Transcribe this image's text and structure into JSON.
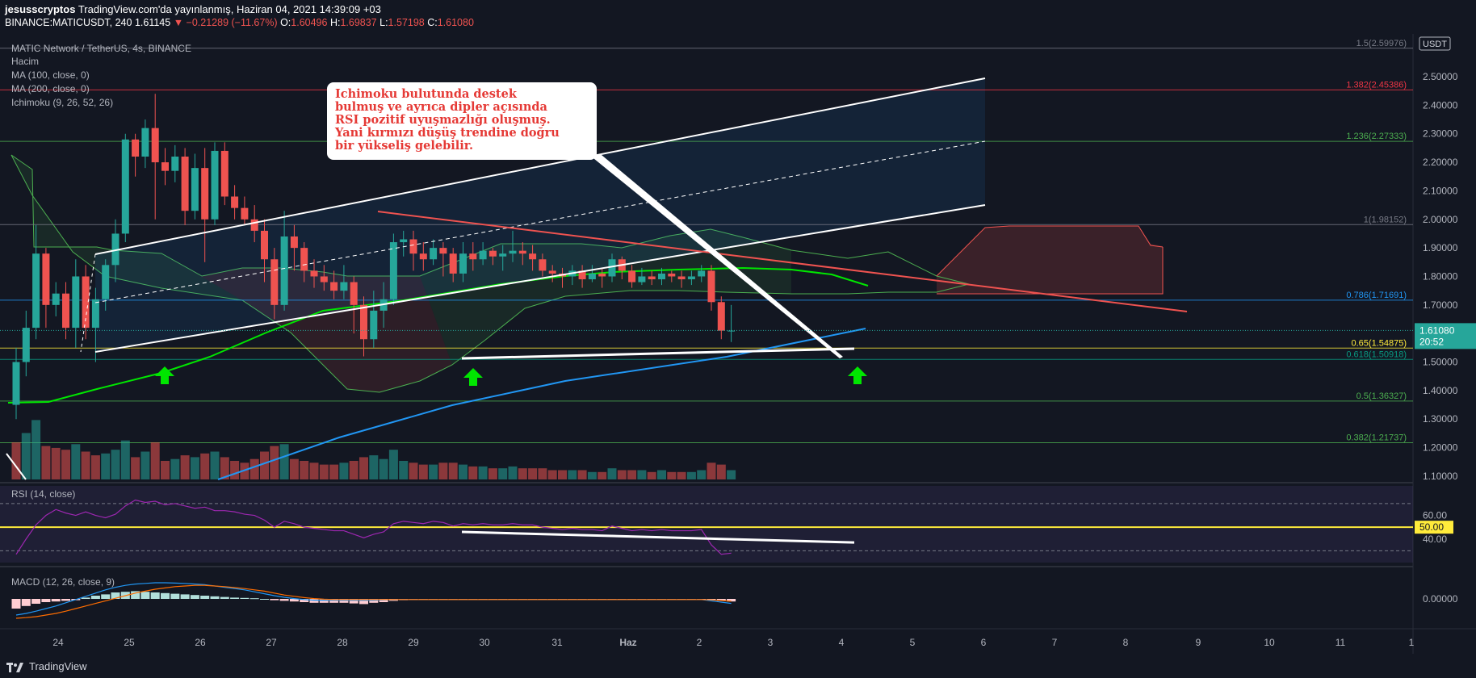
{
  "header": {
    "publisher": "jesusscryptos",
    "published_text": "TradingView.com'da yayınlanmış, Haziran 04, 2021 14:39:09 +03",
    "symbol": "BINANCE:MATICUSDT, 240",
    "last": "1.61145",
    "change": "−0.21289 (−11.67%)",
    "o": "1.60496",
    "h": "1.69837",
    "l": "1.57198",
    "c": "1.61080"
  },
  "legend": {
    "title": "MATIC Network / TetherUS, 4s, BINANCE",
    "volume": "Hacim",
    "ma100": "MA (100, close, 0)",
    "ma200": "MA (200, close, 0)",
    "ichimoku": "Ichimoku (9, 26, 52, 26)",
    "rsi": "RSI (14, close)",
    "macd": "MACD (12, 26, close, 9)"
  },
  "annotation": {
    "text": "Ichimoku bulutunda destek\nbulmuş ve ayrıca dipler açısında\nRSI pozitif uyuşmazlığı oluşmuş.\nYani kırmızı düşüş trendine doğru\nbir yükseliş gelebilir."
  },
  "currency": "USDT",
  "price_tag": {
    "value": "1.61080",
    "timer": "20:52"
  },
  "rsi_tag": "50.00",
  "branding": "TradingView",
  "colors": {
    "up": "#26a69a",
    "down": "#ef5350",
    "bg": "#131722",
    "ma100": "#00e600",
    "ma200": "#2196f3",
    "rsi": "#9c27b0",
    "note_text": "#e53935"
  },
  "chart_data": [
    {
      "type": "candlestick",
      "title": "MATIC Network / TetherUS, 4s, BINANCE",
      "x_ticks": [
        "24",
        "25",
        "26",
        "27",
        "28",
        "29",
        "30",
        "31",
        "Haz",
        "2",
        "3",
        "4",
        "5",
        "6",
        "7",
        "8",
        "9",
        "10",
        "11",
        "1"
      ],
      "y_ticks": [
        "1.10000",
        "1.20000",
        "1.30000",
        "1.40000",
        "1.50000",
        "1.60000",
        "1.70000",
        "1.80000",
        "1.90000",
        "2.00000",
        "2.10000",
        "2.20000",
        "2.30000",
        "2.40000",
        "2.50000"
      ],
      "ylim": [
        1.08,
        2.65
      ],
      "fib_levels": [
        {
          "label": "1.5(2.59976)",
          "value": 2.59976,
          "color": "#787b86"
        },
        {
          "label": "1.382(2.45386)",
          "value": 2.45386,
          "color": "#f23645"
        },
        {
          "label": "1.236(2.27333)",
          "value": 2.27333,
          "color": "#4caf50"
        },
        {
          "label": "1(1.98152)",
          "value": 1.98152,
          "color": "#787b86"
        },
        {
          "label": "0.786(1.71691)",
          "value": 1.71691,
          "color": "#2196f3"
        },
        {
          "label": "0.65(1.54875)",
          "value": 1.54875,
          "color": "#ffeb3b"
        },
        {
          "label": "0.618(1.50918)",
          "value": 1.50918,
          "color": "#089981"
        },
        {
          "label": "0.5(1.36327)",
          "value": 1.36327,
          "color": "#4caf50"
        },
        {
          "label": "0.382(1.21737)",
          "value": 1.21737,
          "color": "#4caf50"
        }
      ],
      "candles": [
        [
          1.35,
          1.5,
          1.3,
          1.55
        ],
        [
          1.5,
          1.62,
          1.45,
          1.68
        ],
        [
          1.62,
          1.88,
          1.58,
          1.98
        ],
        [
          1.88,
          1.7,
          1.62,
          1.9
        ],
        [
          1.7,
          1.74,
          1.66,
          1.78
        ],
        [
          1.74,
          1.62,
          1.58,
          1.78
        ],
        [
          1.62,
          1.8,
          1.55,
          1.86
        ],
        [
          1.8,
          1.62,
          1.58,
          1.84
        ],
        [
          1.62,
          1.72,
          1.5,
          1.76
        ],
        [
          1.72,
          1.84,
          1.68,
          1.86
        ],
        [
          1.84,
          1.95,
          1.78,
          2.0
        ],
        [
          1.95,
          2.28,
          1.92,
          2.3
        ],
        [
          2.28,
          2.22,
          2.15,
          2.3
        ],
        [
          2.22,
          2.32,
          2.18,
          2.35
        ],
        [
          2.32,
          2.2,
          2.0,
          2.44
        ],
        [
          2.2,
          2.17,
          2.12,
          2.25
        ],
        [
          2.17,
          2.22,
          2.13,
          2.26
        ],
        [
          2.22,
          2.03,
          1.98,
          2.25
        ],
        [
          2.03,
          2.18,
          2.0,
          2.23
        ],
        [
          2.18,
          2.0,
          1.85,
          2.25
        ],
        [
          2.0,
          2.24,
          1.98,
          2.27
        ],
        [
          2.24,
          2.08,
          2.05,
          2.27
        ],
        [
          2.08,
          2.04,
          2.0,
          2.12
        ],
        [
          2.04,
          2.0,
          1.98,
          2.08
        ],
        [
          2.0,
          1.96,
          1.92,
          2.05
        ],
        [
          1.96,
          1.86,
          1.78,
          2.0
        ],
        [
          1.86,
          1.7,
          1.65,
          1.9
        ],
        [
          1.7,
          1.94,
          1.68,
          2.03
        ],
        [
          1.94,
          1.9,
          1.82,
          1.98
        ],
        [
          1.9,
          1.82,
          1.78,
          1.92
        ],
        [
          1.82,
          1.8,
          1.76,
          1.86
        ],
        [
          1.8,
          1.78,
          1.75,
          1.84
        ],
        [
          1.78,
          1.75,
          1.72,
          1.82
        ],
        [
          1.75,
          1.78,
          1.72,
          1.84
        ],
        [
          1.78,
          1.7,
          1.6,
          1.8
        ],
        [
          1.7,
          1.58,
          1.52,
          1.73
        ],
        [
          1.58,
          1.68,
          1.55,
          1.75
        ],
        [
          1.68,
          1.72,
          1.62,
          1.78
        ],
        [
          1.72,
          1.92,
          1.7,
          1.95
        ],
        [
          1.92,
          1.93,
          1.87,
          1.96
        ],
        [
          1.93,
          1.88,
          1.82,
          1.96
        ],
        [
          1.88,
          1.86,
          1.82,
          1.92
        ],
        [
          1.86,
          1.9,
          1.84,
          1.93
        ],
        [
          1.9,
          1.88,
          1.8,
          1.92
        ],
        [
          1.88,
          1.81,
          1.78,
          1.9
        ],
        [
          1.81,
          1.88,
          1.78,
          1.92
        ],
        [
          1.88,
          1.86,
          1.82,
          1.92
        ],
        [
          1.86,
          1.89,
          1.84,
          1.92
        ],
        [
          1.89,
          1.87,
          1.84,
          1.9
        ],
        [
          1.87,
          1.88,
          1.82,
          1.91
        ],
        [
          1.88,
          1.89,
          1.85,
          1.96
        ],
        [
          1.89,
          1.88,
          1.84,
          1.92
        ],
        [
          1.88,
          1.86,
          1.82,
          1.91
        ],
        [
          1.86,
          1.82,
          1.8,
          1.88
        ],
        [
          1.82,
          1.81,
          1.78,
          1.84
        ],
        [
          1.81,
          1.8,
          1.76,
          1.83
        ],
        [
          1.8,
          1.82,
          1.77,
          1.84
        ],
        [
          1.82,
          1.79,
          1.76,
          1.84
        ],
        [
          1.79,
          1.81,
          1.78,
          1.84
        ],
        [
          1.81,
          1.8,
          1.76,
          1.83
        ],
        [
          1.8,
          1.86,
          1.78,
          1.88
        ],
        [
          1.86,
          1.82,
          1.79,
          1.87
        ],
        [
          1.82,
          1.78,
          1.76,
          1.84
        ],
        [
          1.78,
          1.8,
          1.77,
          1.83
        ],
        [
          1.8,
          1.79,
          1.77,
          1.82
        ],
        [
          1.79,
          1.81,
          1.77,
          1.83
        ],
        [
          1.81,
          1.8,
          1.78,
          1.82
        ],
        [
          1.8,
          1.79,
          1.76,
          1.82
        ],
        [
          1.79,
          1.8,
          1.77,
          1.82
        ],
        [
          1.8,
          1.82,
          1.78,
          1.84
        ],
        [
          1.82,
          1.71,
          1.68,
          1.84
        ],
        [
          1.71,
          1.61,
          1.58,
          1.73
        ],
        [
          1.61,
          1.61,
          1.57,
          1.7
        ]
      ],
      "volume": [
        [
          2.0,
          0
        ],
        [
          2.5,
          1
        ],
        [
          3.2,
          1
        ],
        [
          1.8,
          0
        ],
        [
          1.7,
          0
        ],
        [
          1.6,
          0
        ],
        [
          1.9,
          1
        ],
        [
          1.5,
          0
        ],
        [
          1.3,
          0
        ],
        [
          1.4,
          1
        ],
        [
          1.6,
          1
        ],
        [
          2.1,
          1
        ],
        [
          1.2,
          0
        ],
        [
          1.5,
          1
        ],
        [
          2.0,
          0
        ],
        [
          1.0,
          0
        ],
        [
          1.1,
          1
        ],
        [
          1.3,
          0
        ],
        [
          1.2,
          1
        ],
        [
          1.4,
          0
        ],
        [
          1.5,
          1
        ],
        [
          1.2,
          0
        ],
        [
          1.0,
          0
        ],
        [
          0.9,
          0
        ],
        [
          1.1,
          0
        ],
        [
          1.5,
          0
        ],
        [
          1.8,
          0
        ],
        [
          1.9,
          1
        ],
        [
          1.1,
          0
        ],
        [
          1.0,
          0
        ],
        [
          0.9,
          0
        ],
        [
          0.8,
          0
        ],
        [
          0.8,
          0
        ],
        [
          0.9,
          1
        ],
        [
          1.0,
          0
        ],
        [
          1.2,
          0
        ],
        [
          1.3,
          1
        ],
        [
          1.1,
          1
        ],
        [
          1.6,
          1
        ],
        [
          1.0,
          1
        ],
        [
          0.9,
          0
        ],
        [
          0.8,
          0
        ],
        [
          0.8,
          1
        ],
        [
          0.9,
          0
        ],
        [
          0.9,
          0
        ],
        [
          0.8,
          1
        ],
        [
          0.7,
          0
        ],
        [
          0.7,
          1
        ],
        [
          0.6,
          0
        ],
        [
          0.6,
          1
        ],
        [
          0.7,
          1
        ],
        [
          0.6,
          0
        ],
        [
          0.6,
          0
        ],
        [
          0.6,
          0
        ],
        [
          0.5,
          0
        ],
        [
          0.5,
          0
        ],
        [
          0.5,
          1
        ],
        [
          0.5,
          0
        ],
        [
          0.4,
          1
        ],
        [
          0.4,
          0
        ],
        [
          0.6,
          1
        ],
        [
          0.5,
          0
        ],
        [
          0.5,
          0
        ],
        [
          0.5,
          1
        ],
        [
          0.4,
          0
        ],
        [
          0.5,
          1
        ],
        [
          0.4,
          0
        ],
        [
          0.4,
          0
        ],
        [
          0.4,
          1
        ],
        [
          0.5,
          1
        ],
        [
          0.9,
          0
        ],
        [
          0.8,
          0
        ],
        [
          0.5,
          1
        ]
      ]
    },
    {
      "type": "line",
      "title": "RSI (14, close)",
      "y_ticks": [
        "40.00",
        "60.00"
      ],
      "ylim": [
        20,
        85
      ],
      "levels": [
        70,
        50,
        30
      ],
      "values": [
        27,
        40,
        52,
        60,
        65,
        62,
        60,
        63,
        60,
        58,
        61,
        68,
        73,
        71,
        72,
        69,
        70,
        68,
        66,
        67,
        64,
        64,
        63,
        61,
        60,
        56,
        50,
        55,
        53,
        50,
        49,
        48,
        47,
        47,
        44,
        41,
        44,
        46,
        53,
        55,
        54,
        53,
        55,
        54,
        51,
        53,
        52,
        53,
        52,
        52,
        53,
        52,
        52,
        50,
        49,
        48,
        49,
        48,
        48,
        47,
        51,
        49,
        47,
        48,
        47,
        48,
        47,
        47,
        47,
        48,
        35,
        27,
        28
      ]
    },
    {
      "type": "bar",
      "title": "MACD (12, 26, close, 9)",
      "y_ticks": [
        "0.00000"
      ],
      "ylim": [
        -0.09,
        0.09
      ],
      "histogram": [
        -0.03,
        -0.022,
        -0.015,
        -0.01,
        -0.008,
        -0.006,
        -0.004,
        0.004,
        0.01,
        0.014,
        0.02,
        0.022,
        0.024,
        0.022,
        0.02,
        0.018,
        0.016,
        0.014,
        0.012,
        0.01,
        0.008,
        0.006,
        0.004,
        0.003,
        0.002,
        0.0,
        -0.004,
        -0.006,
        -0.008,
        -0.01,
        -0.012,
        -0.012,
        -0.012,
        -0.012,
        -0.014,
        -0.016,
        -0.012,
        -0.01,
        -0.006,
        -0.004,
        -0.003,
        -0.002,
        -0.002,
        -0.002,
        -0.002,
        -0.001,
        -0.001,
        -0.001,
        -0.001,
        -0.001,
        -0.001,
        -0.001,
        -0.001,
        -0.001,
        -0.001,
        -0.001,
        -0.001,
        -0.001,
        -0.001,
        -0.001,
        -0.001,
        -0.001,
        -0.001,
        -0.001,
        -0.001,
        -0.001,
        -0.001,
        -0.001,
        -0.001,
        -0.001,
        -0.003,
        -0.006,
        -0.008
      ],
      "macd": [
        -0.05,
        -0.045,
        -0.038,
        -0.03,
        -0.022,
        -0.012,
        -0.002,
        0.008,
        0.018,
        0.028,
        0.036,
        0.042,
        0.046,
        0.048,
        0.05,
        0.05,
        0.049,
        0.048,
        0.046,
        0.044,
        0.04,
        0.036,
        0.032,
        0.028,
        0.022,
        0.016,
        0.01,
        0.005,
        0.001,
        -0.002,
        -0.004,
        -0.004,
        -0.004,
        -0.004,
        -0.004,
        -0.004,
        -0.004,
        -0.003,
        -0.002,
        -0.002,
        -0.002,
        -0.002,
        -0.002,
        -0.002,
        -0.002,
        -0.002,
        -0.002,
        -0.002,
        -0.002,
        -0.002,
        -0.002,
        -0.002,
        -0.002,
        -0.002,
        -0.002,
        -0.002,
        -0.002,
        -0.002,
        -0.002,
        -0.002,
        -0.002,
        -0.002,
        -0.002,
        -0.002,
        -0.002,
        -0.002,
        -0.002,
        -0.002,
        -0.002,
        -0.002,
        -0.006,
        -0.01,
        -0.014
      ],
      "signal": [
        -0.06,
        -0.058,
        -0.055,
        -0.05,
        -0.045,
        -0.038,
        -0.03,
        -0.022,
        -0.014,
        -0.006,
        0.002,
        0.01,
        0.018,
        0.024,
        0.03,
        0.034,
        0.038,
        0.04,
        0.042,
        0.042,
        0.04,
        0.038,
        0.035,
        0.032,
        0.028,
        0.024,
        0.018,
        0.012,
        0.008,
        0.004,
        0.001,
        -0.001,
        -0.002,
        -0.002,
        -0.002,
        -0.002,
        -0.002,
        -0.002,
        -0.002,
        -0.002,
        -0.002,
        -0.002,
        -0.002,
        -0.002,
        -0.002,
        -0.002,
        -0.002,
        -0.002,
        -0.002,
        -0.002,
        -0.002,
        -0.002,
        -0.002,
        -0.002,
        -0.002,
        -0.002,
        -0.002,
        -0.002,
        -0.002,
        -0.002,
        -0.002,
        -0.002,
        -0.002,
        -0.002,
        -0.002,
        -0.002,
        -0.002,
        -0.002,
        -0.002,
        -0.002,
        -0.003,
        -0.005,
        -0.007
      ]
    }
  ]
}
